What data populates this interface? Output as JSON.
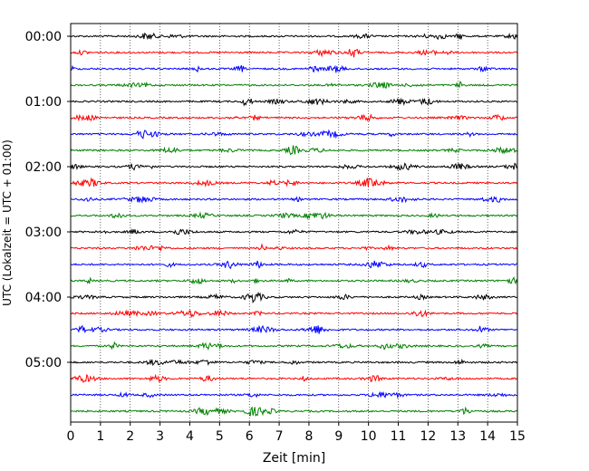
{
  "chart_data": {
    "type": "line",
    "title": "",
    "xlabel": "Zeit  [min]",
    "ylabel": "UTC (Lokalzeit = UTC + 01:00)",
    "xlim": [
      0,
      15
    ],
    "x_ticks": [
      0,
      1,
      2,
      3,
      4,
      5,
      6,
      7,
      8,
      9,
      10,
      11,
      12,
      13,
      14,
      15
    ],
    "x_tick_labels": [
      "0",
      "1",
      "2",
      "3",
      "4",
      "5",
      "6",
      "7",
      "8",
      "9",
      "10",
      "11",
      "12",
      "13",
      "14",
      "15"
    ],
    "y_tick_labels": [
      "00:00",
      "01:00",
      "02:00",
      "03:00",
      "04:00",
      "05:00"
    ],
    "traces_per_hour": 4,
    "trace_count": 24,
    "trace_colors": [
      "#000000",
      "#ff0000",
      "#0000ff",
      "#008000"
    ],
    "vertical_grid": "dotted",
    "legend": "none"
  }
}
